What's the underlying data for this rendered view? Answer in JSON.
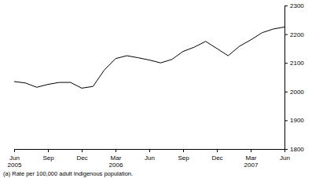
{
  "chart_data": {
    "type": "line",
    "categories": [
      "Jun 2005",
      null,
      null,
      "Sep",
      null,
      null,
      "Dec",
      null,
      null,
      "Mar 2006",
      null,
      null,
      "Jun",
      null,
      null,
      "Sep",
      null,
      null,
      "Dec",
      null,
      null,
      "Mar 2007",
      null,
      null,
      "Jun"
    ],
    "values": [
      2035,
      2030,
      2015,
      2025,
      2032,
      2032,
      2012,
      2018,
      2075,
      2115,
      2125,
      2118,
      2110,
      2100,
      2112,
      2140,
      2155,
      2175,
      2150,
      2125,
      2158,
      2180,
      2205,
      2218,
      2225
    ],
    "color": "#000000",
    "ylim": [
      1800,
      2300
    ],
    "yticks": [
      1800,
      1900,
      2000,
      2100,
      2200,
      2300
    ],
    "grid": false,
    "annotations": [
      "(a) Rate per 100,000 adult Indigenous population."
    ]
  }
}
